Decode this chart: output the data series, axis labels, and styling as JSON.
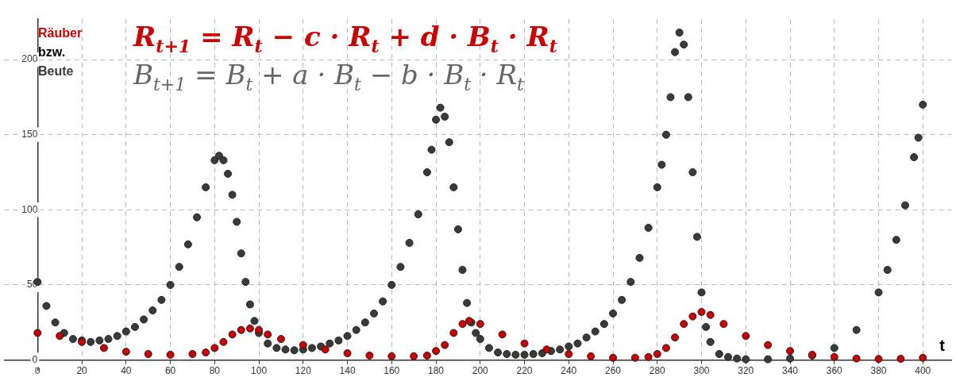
{
  "chart_data": {
    "type": "scatter",
    "xlabel": "t",
    "xlim": [
      -15,
      413
    ],
    "ylim": [
      -7,
      227
    ],
    "xticks": [
      0,
      20,
      40,
      60,
      80,
      100,
      120,
      140,
      160,
      180,
      200,
      220,
      240,
      260,
      280,
      300,
      320,
      340,
      360,
      380,
      400
    ],
    "yticks": [
      0,
      50,
      100,
      150,
      200
    ],
    "grid": true,
    "legend": "top left",
    "marker": "circle",
    "annotations": [
      "bzw.",
      "R$_{t+1}$ = R$_{t}$ − c · R$_{t}$ + d · B$_{t}$ · R$_{t}$",
      "B$_{t+1}$ = B$_{t}$ + a · B$_{t}$ − b · B$_{t}$ · R$_{t}$"
    ],
    "series": [
      {
        "name": "Räuber",
        "color": "#cc0000",
        "x": [
          0,
          10,
          20,
          30,
          40,
          50,
          60,
          70,
          76,
          80,
          84,
          88,
          92,
          96,
          100,
          104,
          110,
          120,
          130,
          140,
          150,
          160,
          170,
          176,
          180,
          184,
          188,
          192,
          195,
          200,
          210,
          220,
          230,
          240,
          250,
          260,
          270,
          276,
          280,
          284,
          288,
          292,
          296,
          300,
          304,
          310,
          320,
          330,
          340,
          350,
          360,
          370,
          380,
          390,
          400
        ],
        "values": [
          18,
          16,
          12,
          8,
          5.5,
          4,
          3.5,
          4,
          5,
          8,
          12,
          17,
          20,
          21,
          20,
          17,
          14,
          10,
          7,
          4.5,
          3,
          2.5,
          2.5,
          3,
          6,
          10,
          18,
          24,
          26,
          24,
          17,
          11,
          7,
          4,
          2.5,
          1.5,
          1.5,
          2,
          4,
          8,
          15,
          24,
          29,
          32,
          30,
          24,
          16,
          10,
          6,
          3.5,
          2,
          1,
          0.7,
          0.8,
          1.5
        ]
      },
      {
        "name": "Beute",
        "color": "#3a3a3a",
        "x": [
          0,
          4,
          8,
          12,
          16,
          20,
          24,
          28,
          32,
          36,
          40,
          44,
          48,
          52,
          56,
          60,
          64,
          68,
          72,
          76,
          80,
          82,
          84,
          86,
          88,
          90,
          92,
          94,
          96,
          98,
          100,
          104,
          108,
          112,
          116,
          120,
          124,
          128,
          132,
          136,
          140,
          144,
          148,
          152,
          156,
          160,
          164,
          168,
          172,
          176,
          178,
          180,
          182,
          184,
          186,
          188,
          190,
          192,
          194,
          196,
          198,
          200,
          204,
          208,
          212,
          216,
          220,
          224,
          228,
          232,
          236,
          240,
          244,
          248,
          252,
          256,
          260,
          264,
          268,
          272,
          276,
          280,
          282,
          284,
          286,
          288,
          290,
          292,
          294,
          296,
          298,
          300,
          302,
          304,
          308,
          312,
          316,
          320,
          330,
          340,
          350,
          360,
          370,
          380,
          384,
          388,
          392,
          396,
          398,
          400
        ],
        "values": [
          52,
          36,
          25,
          18,
          14,
          13,
          12,
          13,
          14,
          16,
          19,
          22,
          27,
          33,
          40,
          50,
          62,
          77,
          95,
          115,
          133,
          136,
          133,
          124,
          110,
          92,
          71,
          52,
          37,
          26,
          18,
          11,
          8,
          7,
          6.5,
          7,
          8,
          9,
          11,
          13,
          16,
          20,
          25,
          31,
          39,
          50,
          62,
          78,
          97,
          125,
          140,
          160,
          168,
          162,
          145,
          115,
          87,
          60,
          38,
          25,
          18,
          14,
          8,
          5,
          4,
          3.5,
          3.5,
          4,
          4.5,
          6,
          7,
          9,
          11,
          15,
          19,
          24,
          31,
          40,
          52,
          68,
          88,
          115,
          130,
          150,
          175,
          205,
          218,
          210,
          175,
          125,
          82,
          45,
          22,
          12,
          4,
          2,
          1,
          0.5,
          0.5,
          1,
          3,
          8,
          20,
          45,
          60,
          80,
          103,
          135,
          148,
          170
        ]
      }
    ]
  }
}
